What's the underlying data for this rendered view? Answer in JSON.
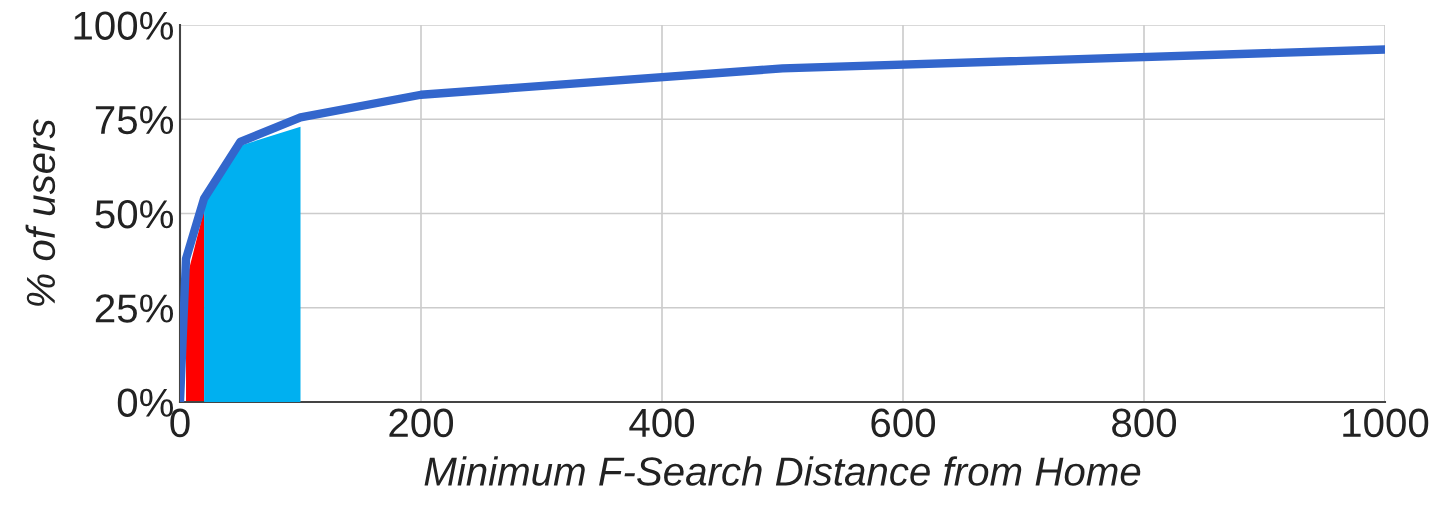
{
  "chart_data": {
    "type": "line",
    "xlabel": "Minimum F-Search Distance from Home",
    "ylabel": "% of users",
    "series": [
      {
        "type": "area",
        "color": "#ff0000",
        "x": [
          5,
          20
        ],
        "values": [
          32,
          51
        ]
      },
      {
        "type": "area",
        "color": "#00b0f0",
        "x": [
          20,
          50,
          100
        ],
        "values": [
          53,
          68,
          73
        ]
      },
      {
        "color": "#3366cc",
        "x": [
          0,
          5,
          20,
          50,
          100,
          200,
          500,
          1000
        ],
        "values": [
          0,
          38,
          54,
          69,
          75.5,
          81.5,
          88.5,
          93.5
        ]
      }
    ],
    "xlim": [
      0,
      1000
    ],
    "xticks": [
      0,
      200,
      400,
      600,
      800,
      1000
    ],
    "ylim": [
      0,
      100
    ],
    "yticks": [
      {
        "value": 0,
        "label": "0%"
      },
      {
        "value": 25,
        "label": "25%"
      },
      {
        "value": 50,
        "label": "50%"
      },
      {
        "value": 75,
        "label": "75%"
      },
      {
        "value": 100,
        "label": "100%"
      }
    ],
    "grid": true
  }
}
